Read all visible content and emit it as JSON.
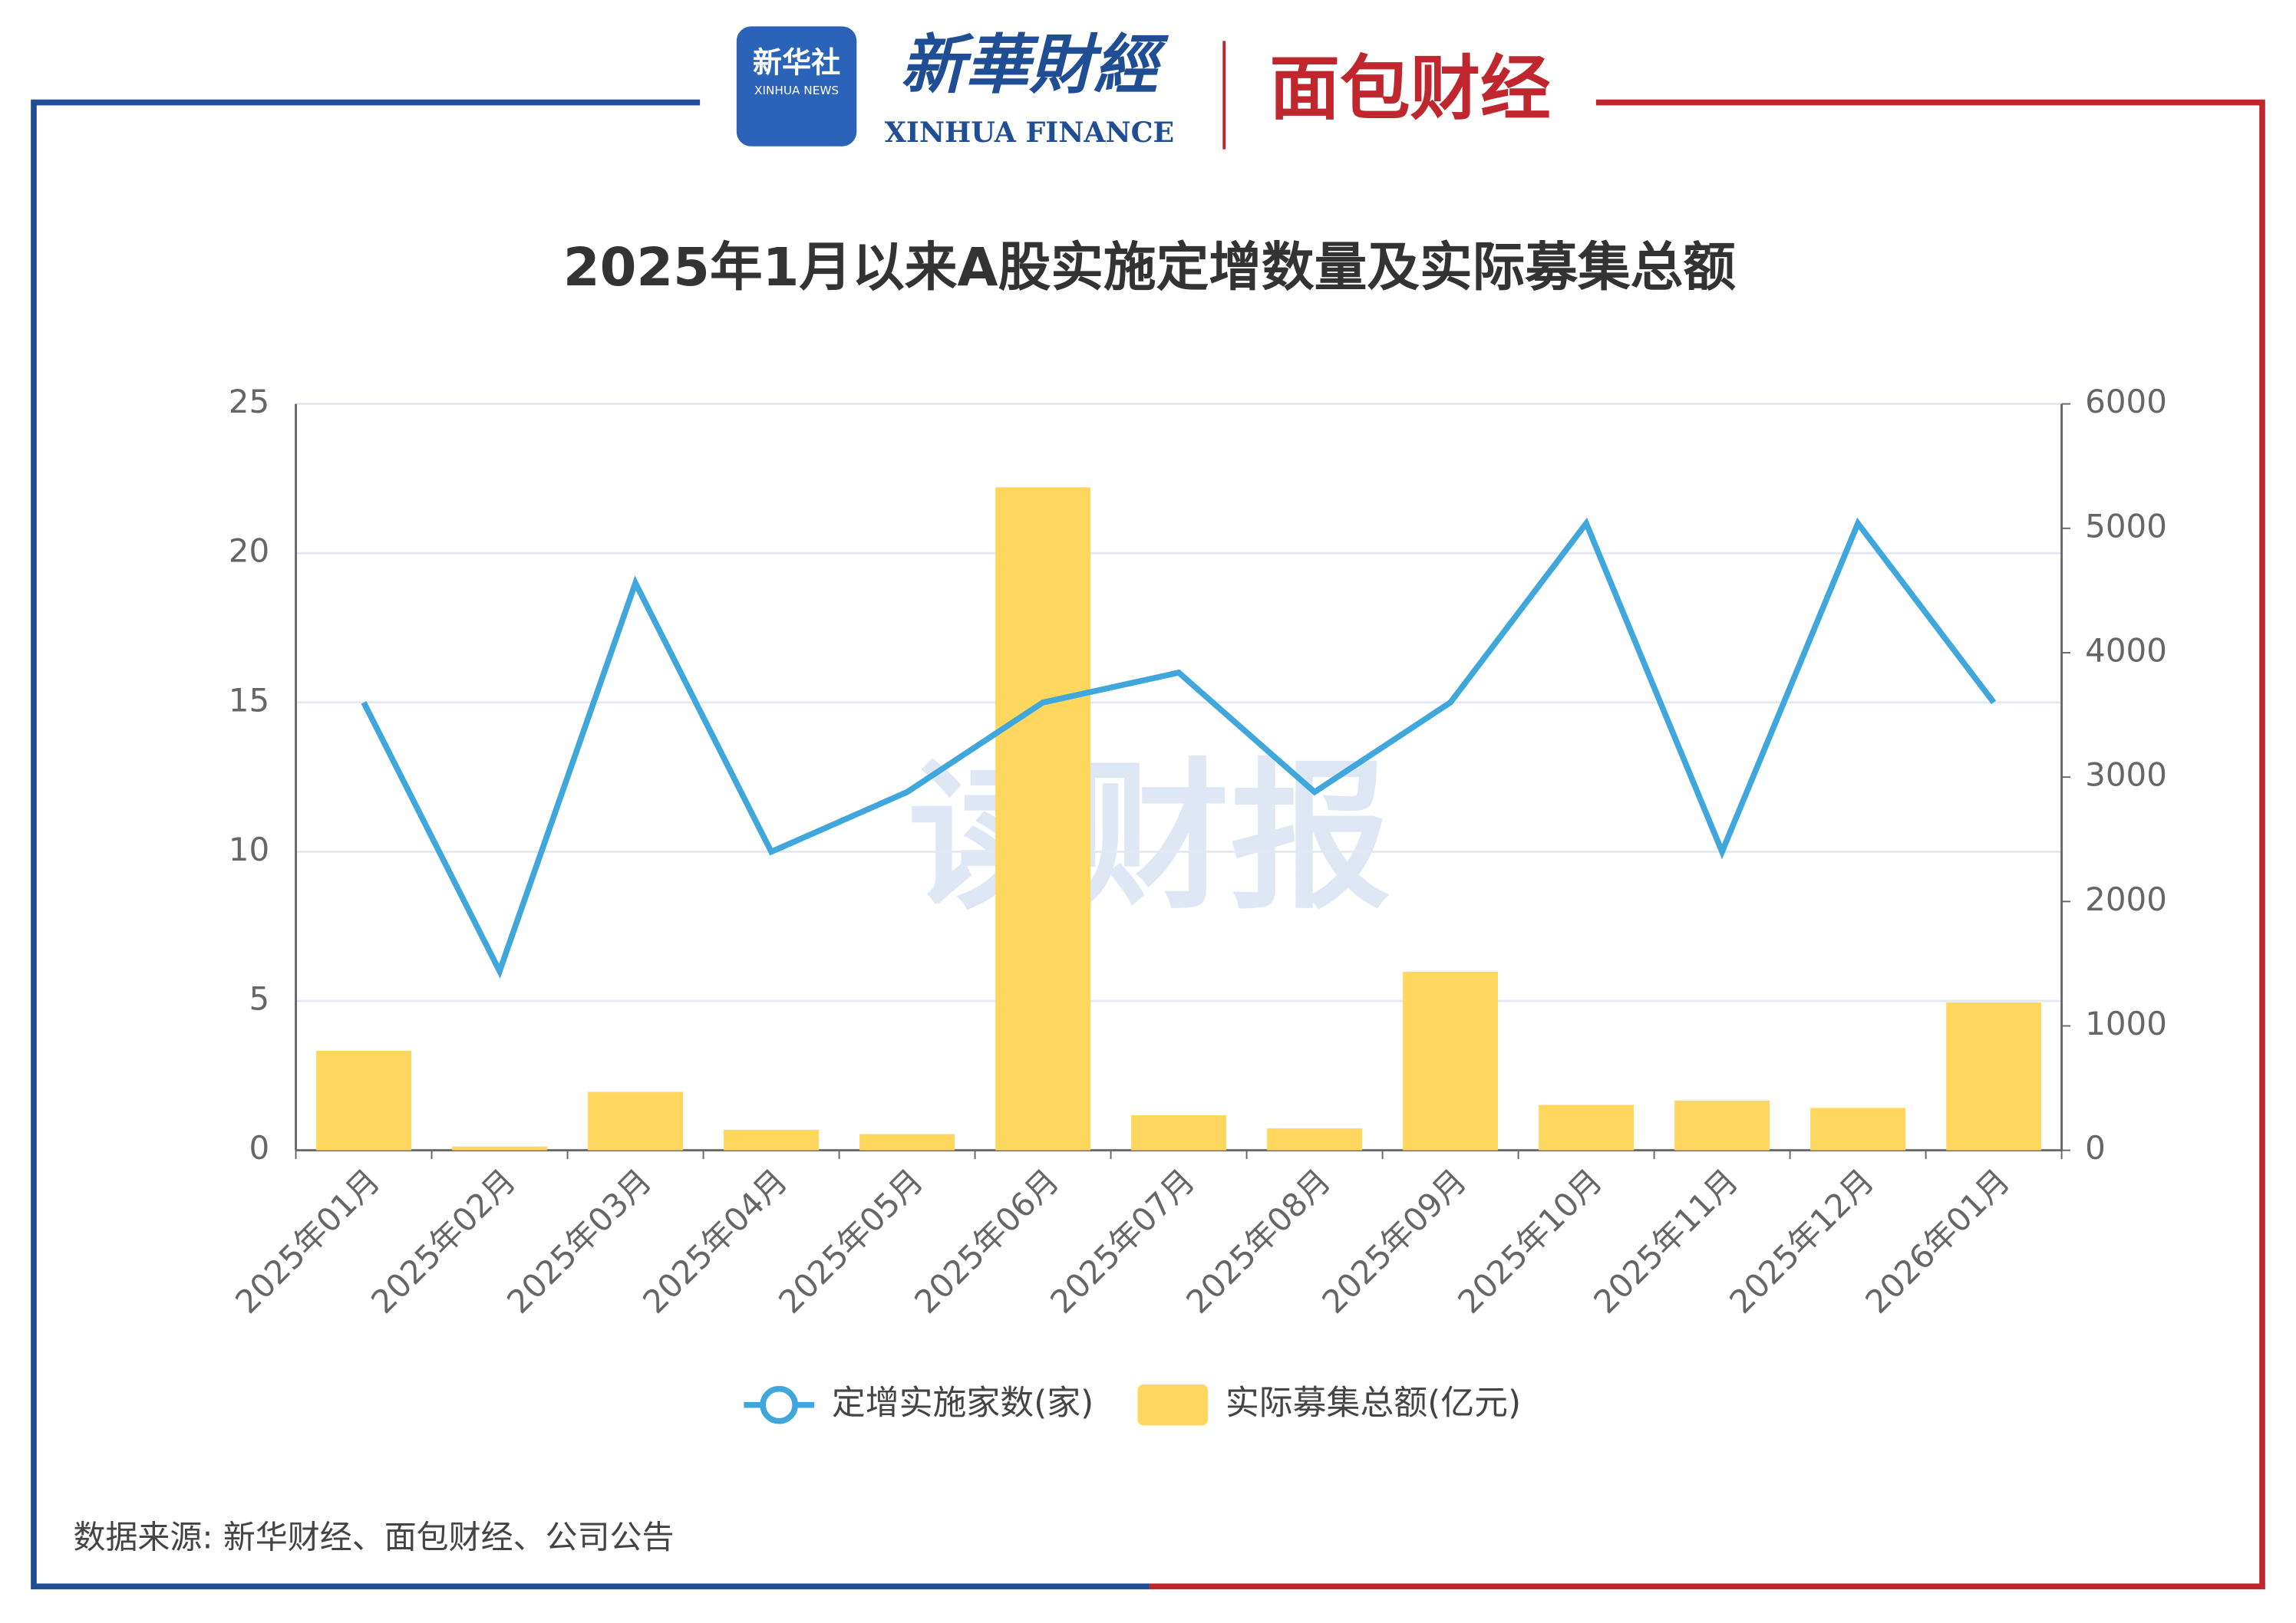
{
  "header": {
    "logo_1": "新华社",
    "logo_1_sub": "XINHUA NEWS",
    "logo_2": "新華財經",
    "logo_2_sub": "XINHUA FINANCE",
    "logo_3": "面包财经"
  },
  "watermark": "读财报",
  "chart_data": {
    "type": "bar-line",
    "title": "2025年1月以来A股实施定增数量及实际募集总额",
    "categories": [
      "2025年01月",
      "2025年02月",
      "2025年03月",
      "2025年04月",
      "2025年05月",
      "2025年06月",
      "2025年07月",
      "2025年08月",
      "2025年09月",
      "2025年10月",
      "2025年11月",
      "2025年12月",
      "2026年01月"
    ],
    "series": [
      {
        "name": "定增实施家数(家)",
        "type": "line",
        "color": "#3fa7dc",
        "values": [
          15,
          6,
          19,
          10,
          12,
          15,
          16,
          12,
          15,
          21,
          10,
          21,
          15
        ]
      },
      {
        "name": "实际募集总额(亿元)",
        "type": "bar",
        "axis": "y2",
        "color": "#ffd75e",
        "values": [
          800,
          30,
          470,
          165,
          130,
          5330,
          282,
          176,
          1435,
          365,
          400,
          341,
          1188
        ]
      }
    ],
    "ylim": [
      0,
      25
    ],
    "yticks": [
      0,
      5,
      10,
      15,
      20,
      25
    ],
    "y2lim": [
      0,
      6000
    ],
    "y2ticks": [
      0,
      1000,
      2000,
      3000,
      4000,
      5000,
      6000
    ],
    "grid": true,
    "legend": "bottom"
  },
  "source": "数据来源: 新华财经、面包财经、公司公告"
}
